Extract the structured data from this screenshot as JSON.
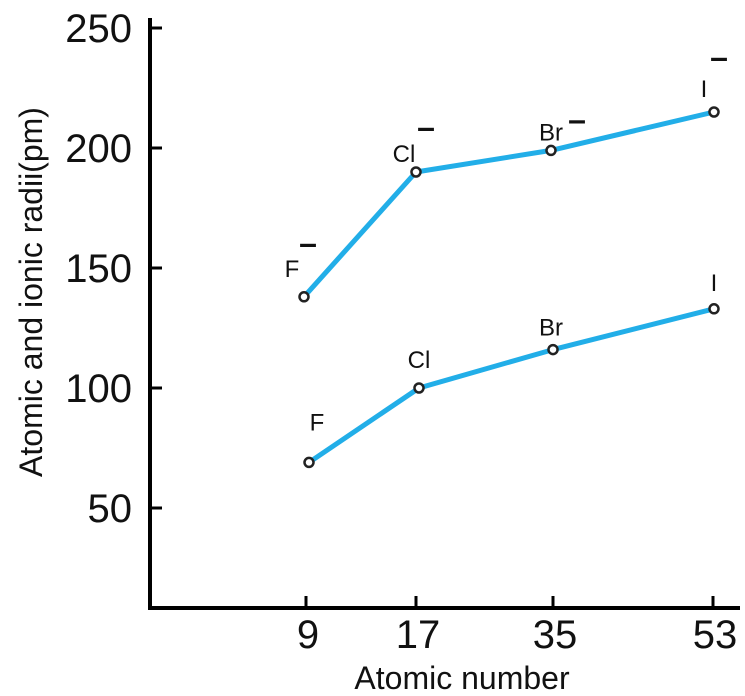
{
  "chart_data": {
    "type": "line",
    "xlabel": "Atomic number",
    "ylabel": "Atomic and ionic radii(pm)",
    "x_ticks": [
      "9",
      "17",
      "35",
      "53"
    ],
    "y_ticks": [
      "50",
      "100",
      "150",
      "200",
      "250"
    ],
    "ylim": [
      10,
      250
    ],
    "grid": false,
    "line_color": "#22aee8",
    "marker_color": "#222222",
    "series": [
      {
        "points": [
          {
            "x": "9",
            "y": 138,
            "label": "F",
            "charge": "–"
          },
          {
            "x": "17",
            "y": 190,
            "label": "Cl",
            "charge": "–"
          },
          {
            "x": "35",
            "y": 199,
            "label": "Br",
            "charge": "–"
          },
          {
            "x": "53",
            "y": 215,
            "label": "I",
            "charge": "–"
          }
        ]
      },
      {
        "points": [
          {
            "x": "9",
            "y": 69,
            "label": "F",
            "charge": ""
          },
          {
            "x": "17",
            "y": 100,
            "label": "Cl",
            "charge": ""
          },
          {
            "x": "35",
            "y": 116,
            "label": "Br",
            "charge": ""
          },
          {
            "x": "53",
            "y": 133,
            "label": "I",
            "charge": ""
          }
        ]
      }
    ]
  }
}
